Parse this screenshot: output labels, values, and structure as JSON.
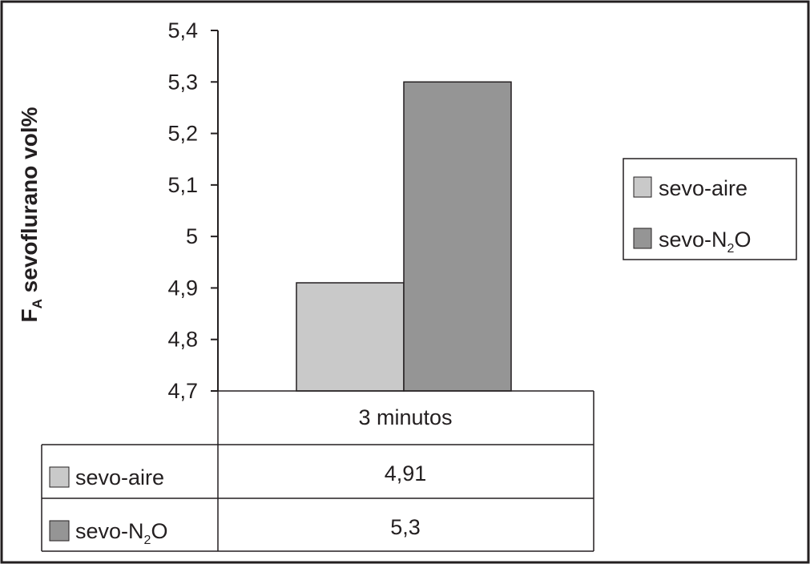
{
  "chart_data": {
    "type": "bar",
    "categories": [
      "3 minutos"
    ],
    "series": [
      {
        "name": "sevo-aire",
        "name_base": "sevo-aire",
        "name_sub": "",
        "name_tail": "",
        "values": [
          4.91
        ],
        "table_value": "4,91",
        "color": "#c9c9c9"
      },
      {
        "name": "sevo-N2O",
        "name_base": "sevo-N",
        "name_sub": "2",
        "name_tail": "O",
        "values": [
          5.3
        ],
        "table_value": "5,3",
        "color": "#959595"
      }
    ],
    "ylabel": "FA sevoflurano vol%",
    "ylabel_main": "F",
    "ylabel_sub": "A",
    "ylabel_tail": " sevoflurano vol%",
    "ylim": [
      4.7,
      5.4
    ],
    "yticks": [
      {
        "value": 4.7,
        "label": "4,7"
      },
      {
        "value": 4.8,
        "label": "4,8"
      },
      {
        "value": 4.9,
        "label": "4,9"
      },
      {
        "value": 5.0,
        "label": "5"
      },
      {
        "value": 5.1,
        "label": "5,1"
      },
      {
        "value": 5.2,
        "label": "5,2"
      },
      {
        "value": 5.3,
        "label": "5,3"
      },
      {
        "value": 5.4,
        "label": "5,4"
      }
    ],
    "legend_placement": "right",
    "data_table": true,
    "grid": false
  },
  "colors": {
    "ink": "#231f20",
    "background": "#ffffff"
  }
}
